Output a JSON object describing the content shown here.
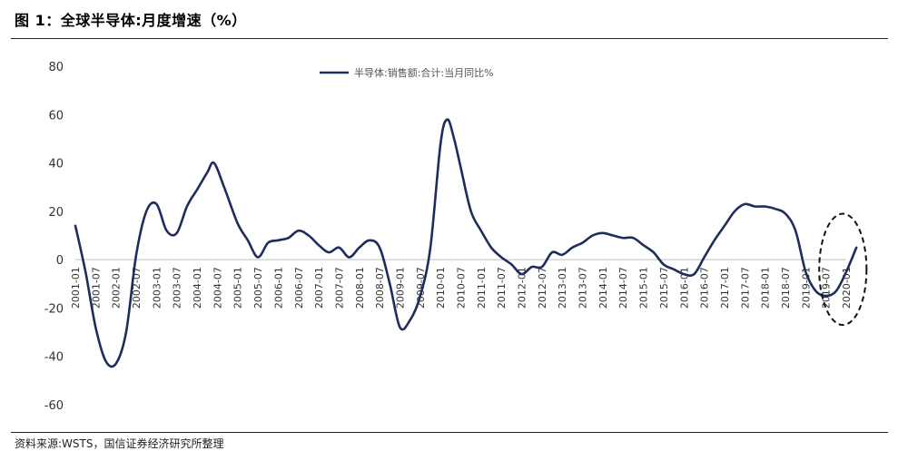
{
  "figure": {
    "title": "图 1：全球半导体:月度增速（%）",
    "source": "资料来源:WSTS，国信证券经济研究所整理"
  },
  "chart_data": {
    "type": "line",
    "title": "",
    "xlabel": "",
    "ylabel": "",
    "ylim": [
      -60,
      80
    ],
    "yticks": [
      -60,
      -40,
      -20,
      0,
      20,
      40,
      60,
      80
    ],
    "grid": false,
    "legend_position": "top-center",
    "x_tick_labels": [
      "2001-01",
      "2001-07",
      "2002-01",
      "2002-07",
      "2003-01",
      "2003-07",
      "2004-01",
      "2004-07",
      "2005-01",
      "2005-07",
      "2006-01",
      "2006-07",
      "2007-01",
      "2007-07",
      "2008-01",
      "2008-07",
      "2009-01",
      "2009-07",
      "2010-01",
      "2010-07",
      "2011-01",
      "2011-07",
      "2012-01",
      "2012-07",
      "2013-01",
      "2013-07",
      "2014-01",
      "2014-07",
      "2015-01",
      "2015-07",
      "2016-01",
      "2016-07",
      "2017-01",
      "2017-07",
      "2018-01",
      "2018-07",
      "2019-01",
      "2019-07",
      "2020-01"
    ],
    "series": [
      {
        "name": "半导体:销售额:合计:当月同比%",
        "color": "#1f2d5c",
        "points": [
          [
            "2001-01",
            14
          ],
          [
            "2001-04",
            -5
          ],
          [
            "2001-07",
            -28
          ],
          [
            "2001-10",
            -42
          ],
          [
            "2002-01",
            -43
          ],
          [
            "2002-04",
            -30
          ],
          [
            "2002-07",
            2
          ],
          [
            "2002-10",
            20
          ],
          [
            "2003-01",
            23
          ],
          [
            "2003-04",
            12
          ],
          [
            "2003-07",
            11
          ],
          [
            "2003-10",
            22
          ],
          [
            "2004-01",
            29
          ],
          [
            "2004-04",
            36
          ],
          [
            "2004-06",
            40
          ],
          [
            "2004-09",
            30
          ],
          [
            "2005-01",
            15
          ],
          [
            "2005-04",
            8
          ],
          [
            "2005-07",
            1
          ],
          [
            "2005-10",
            7
          ],
          [
            "2006-01",
            8
          ],
          [
            "2006-04",
            9
          ],
          [
            "2006-07",
            12
          ],
          [
            "2006-10",
            10
          ],
          [
            "2007-01",
            6
          ],
          [
            "2007-04",
            3
          ],
          [
            "2007-07",
            5
          ],
          [
            "2007-10",
            1
          ],
          [
            "2008-01",
            5
          ],
          [
            "2008-04",
            8
          ],
          [
            "2008-07",
            5
          ],
          [
            "2008-10",
            -10
          ],
          [
            "2009-01",
            -28
          ],
          [
            "2009-04",
            -25
          ],
          [
            "2009-07",
            -15
          ],
          [
            "2009-10",
            5
          ],
          [
            "2010-01",
            48
          ],
          [
            "2010-03",
            58
          ],
          [
            "2010-05",
            50
          ],
          [
            "2010-07",
            38
          ],
          [
            "2010-10",
            20
          ],
          [
            "2011-01",
            12
          ],
          [
            "2011-04",
            5
          ],
          [
            "2011-07",
            1
          ],
          [
            "2011-10",
            -2
          ],
          [
            "2012-01",
            -6
          ],
          [
            "2012-04",
            -3
          ],
          [
            "2012-07",
            -3
          ],
          [
            "2012-10",
            3
          ],
          [
            "2013-01",
            2
          ],
          [
            "2013-04",
            5
          ],
          [
            "2013-07",
            7
          ],
          [
            "2013-10",
            10
          ],
          [
            "2014-01",
            11
          ],
          [
            "2014-04",
            10
          ],
          [
            "2014-07",
            9
          ],
          [
            "2014-10",
            9
          ],
          [
            "2015-01",
            6
          ],
          [
            "2015-04",
            3
          ],
          [
            "2015-07",
            -2
          ],
          [
            "2015-10",
            -4
          ],
          [
            "2016-01",
            -6
          ],
          [
            "2016-04",
            -6
          ],
          [
            "2016-07",
            1
          ],
          [
            "2016-10",
            8
          ],
          [
            "2017-01",
            14
          ],
          [
            "2017-04",
            20
          ],
          [
            "2017-07",
            23
          ],
          [
            "2017-10",
            22
          ],
          [
            "2018-01",
            22
          ],
          [
            "2018-04",
            21
          ],
          [
            "2018-07",
            19
          ],
          [
            "2018-10",
            12
          ],
          [
            "2019-01",
            -5
          ],
          [
            "2019-04",
            -13
          ],
          [
            "2019-07",
            -15
          ],
          [
            "2019-10",
            -13
          ],
          [
            "2020-01",
            -5
          ],
          [
            "2020-04",
            5
          ]
        ]
      }
    ],
    "annotations": [
      {
        "type": "ellipse",
        "style": "dashed",
        "center": [
          "2019-12",
          -4
        ],
        "x_half_span_months": 7,
        "y_half_span": 23
      }
    ]
  }
}
